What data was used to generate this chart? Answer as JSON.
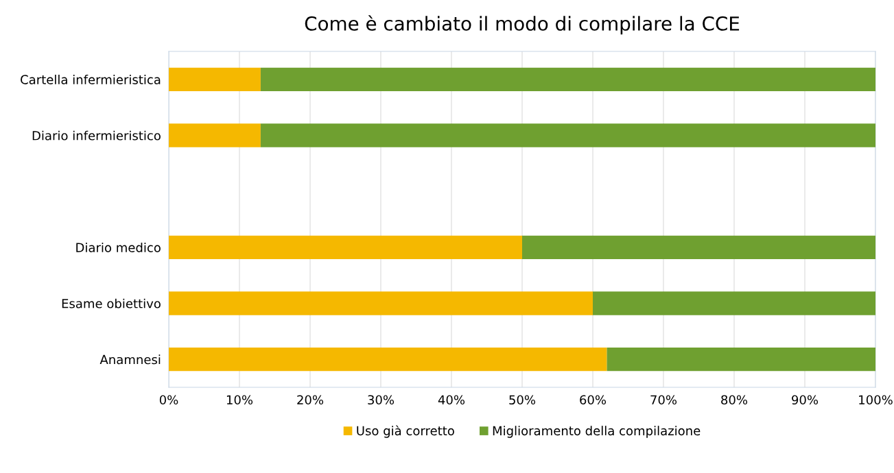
{
  "chart_data": {
    "type": "bar",
    "orientation": "horizontal",
    "stacked": true,
    "title": "Come è cambiato il modo di compilare la CCE",
    "categories": [
      "Cartella infermieristica",
      "Diario infermieristico",
      null,
      "Diario medico",
      "Esame obiettivo",
      "Anamnesi"
    ],
    "series": [
      {
        "name": "Uso già corretto",
        "color": "#f5b800",
        "values": [
          13,
          13,
          null,
          50,
          60,
          62
        ]
      },
      {
        "name": "Miglioramento della compilazione",
        "color": "#6fa030",
        "values": [
          87,
          87,
          null,
          50,
          40,
          38
        ]
      }
    ],
    "xlim": [
      0,
      100
    ],
    "xticks": [
      {
        "value": 0,
        "label": "0%"
      },
      {
        "value": 10,
        "label": "10%"
      },
      {
        "value": 20,
        "label": "20%"
      },
      {
        "value": 30,
        "label": "30%"
      },
      {
        "value": 40,
        "label": "40%"
      },
      {
        "value": 50,
        "label": "50%"
      },
      {
        "value": 60,
        "label": "60%"
      },
      {
        "value": 70,
        "label": "70%"
      },
      {
        "value": 80,
        "label": "80%"
      },
      {
        "value": 90,
        "label": "90%"
      },
      {
        "value": 100,
        "label": "100%"
      }
    ],
    "grid": "x",
    "legend": "bottom"
  }
}
